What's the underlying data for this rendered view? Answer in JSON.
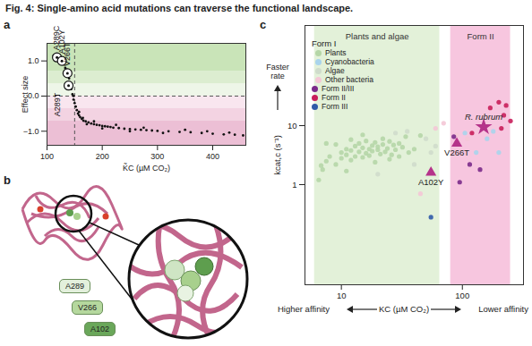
{
  "title": "Fig. 4: Single-amino acid mutations can traverse the functional landscape.",
  "chart_data": [
    {
      "panel": "a",
      "type": "scatter",
      "xlabel": "K̃C (µM CO₂)",
      "ylabel": "Effect size",
      "xlim": [
        100,
        460
      ],
      "xticks": [
        100,
        200,
        300,
        400
      ],
      "ylim": [
        -1.4,
        1.5
      ],
      "yticks": [
        -1,
        0,
        1
      ],
      "color": "#111111",
      "x": [
        112,
        118,
        122,
        125,
        130,
        133,
        136,
        138,
        140,
        142,
        144,
        146,
        148,
        150,
        152,
        154,
        156,
        158,
        160,
        163,
        166,
        170,
        175,
        180,
        185,
        190,
        195,
        200,
        205,
        210,
        215,
        220,
        230,
        240,
        250,
        260,
        270,
        280,
        290,
        300,
        320,
        340,
        360,
        380,
        400,
        420,
        440,
        455,
        165,
        172,
        185,
        200,
        225,
        250,
        275,
        310,
        350,
        390,
        430,
        158,
        148,
        135
      ],
      "values": [
        1.15,
        1.2,
        1.05,
        0.95,
        0.9,
        0.8,
        0.7,
        0.6,
        0.5,
        0.35,
        0.2,
        0.05,
        -0.1,
        -0.2,
        -0.3,
        -0.4,
        -0.5,
        -0.55,
        -0.6,
        -0.65,
        -0.7,
        -0.72,
        -0.75,
        -0.78,
        -0.8,
        -0.82,
        -0.83,
        -0.85,
        -0.86,
        -0.87,
        -0.88,
        -0.9,
        -0.91,
        -0.93,
        -0.94,
        -0.95,
        -0.96,
        -0.97,
        -0.98,
        -0.99,
        -1.0,
        -1.02,
        -1.03,
        -1.05,
        -1.07,
        -1.09,
        -1.1,
        -1.12,
        -0.62,
        -0.8,
        -0.72,
        -0.92,
        -0.82,
        -1.0,
        -0.9,
        -1.05,
        -0.96,
        -1.0,
        -1.04,
        -0.45,
        0.0,
        0.75
      ],
      "annotations": [
        {
          "label": "A289C",
          "x": 118,
          "y": 1.1
        },
        {
          "label": "A102Y",
          "x": 127,
          "y": 1.0
        },
        {
          "label": "V266T",
          "x": 137,
          "y": 0.65
        },
        {
          "label": "A289T",
          "x": 139,
          "y": 0.3
        }
      ],
      "bands": [
        {
          "y1": 0,
          "y2": 0.35,
          "color": "#eef6e8"
        },
        {
          "y1": 0.35,
          "y2": 0.7,
          "color": "#dcedd0"
        },
        {
          "y1": 0.7,
          "y2": 1.5,
          "color": "#c9e4b8"
        },
        {
          "y1": -0.35,
          "y2": 0,
          "color": "#f9e6ef"
        },
        {
          "y1": -0.7,
          "y2": -0.35,
          "color": "#f3d3e2"
        },
        {
          "y1": -1.4,
          "y2": -0.7,
          "color": "#ecbfd5"
        }
      ],
      "reference_lines": {
        "x": 150,
        "y": 0
      }
    },
    {
      "panel": "c",
      "type": "scatter",
      "log": true,
      "xlabel": "KC (µM CO₂)",
      "ylabel": "kcat,c (s⁻¹)",
      "xlim": [
        5,
        320
      ],
      "xticks": [
        10,
        100
      ],
      "ylim": [
        0.02,
        500
      ],
      "yticks": [
        1,
        10
      ],
      "y_note": "Faster rate",
      "x_notes": [
        "Higher affinity",
        "Lower affinity"
      ],
      "regions": [
        {
          "label": "Plants and algae",
          "x1": 6,
          "x2": 65,
          "color": "#e3f1d9"
        },
        {
          "label": "Form II",
          "x1": 80,
          "x2": 250,
          "color": "#f7c6df"
        }
      ],
      "series": [
        {
          "name": "Plants",
          "group": "Form I",
          "color": "#b5d6a7",
          "marker": "circle",
          "x": [
            6.5,
            7,
            7.5,
            8,
            9,
            10,
            10,
            11,
            11,
            12,
            12,
            13,
            13,
            14,
            14,
            15,
            15,
            16,
            16,
            17,
            17,
            18,
            18,
            19,
            20,
            20,
            21,
            22,
            22,
            23,
            24,
            25,
            26,
            27,
            28,
            30,
            32,
            34,
            36,
            9,
            12,
            15,
            19,
            25,
            30,
            40,
            7.5,
            45,
            11,
            6.8
          ],
          "values": [
            1.2,
            1.8,
            2.5,
            3,
            2.2,
            3.5,
            2.8,
            4,
            3.2,
            3.8,
            2.6,
            4.5,
            3,
            3.6,
            5,
            4.2,
            2.9,
            3.4,
            5.5,
            4,
            3.1,
            4.6,
            3.7,
            5.2,
            3.9,
            4.4,
            3.3,
            4.8,
            6,
            3.6,
            4.1,
            5.4,
            3.2,
            4.7,
            3.9,
            5,
            4.3,
            6.5,
            3.5,
            4.8,
            5.8,
            7,
            2.4,
            2.7,
            3,
            4,
            5,
            6.8,
            1.7,
            2.1
          ]
        },
        {
          "name": "Cyanobacteria",
          "group": "Form I",
          "color": "#a9d4ec",
          "marker": "circle",
          "x": [
            130,
            160,
            180,
            105,
            200
          ],
          "values": [
            3.5,
            6,
            8,
            7.5,
            3.5
          ]
        },
        {
          "name": "Algae",
          "group": "Form I",
          "color": "#cfdccb",
          "marker": "circle",
          "x": [
            28,
            35,
            50,
            40,
            55,
            20,
            60
          ],
          "values": [
            7.5,
            8,
            6,
            2.2,
            3.5,
            1.5,
            4.5
          ]
        },
        {
          "name": "Other bacteria",
          "group": "Form I",
          "color": "#f4c7d6",
          "marker": "circle",
          "x": [
            60,
            70,
            45,
            90,
            110
          ],
          "values": [
            9,
            11,
            0.7,
            7,
            6
          ]
        },
        {
          "name": "Form II/III",
          "color": "#7a2a8a",
          "marker": "circle",
          "x": [
            85,
            115,
            140,
            95
          ],
          "values": [
            6.5,
            2.2,
            1.8,
            1.1
          ]
        },
        {
          "name": "Form II",
          "color": "#c81e5a",
          "marker": "circle",
          "x": [
            200,
            230,
            170,
            220,
            250,
            210,
            120
          ],
          "values": [
            25,
            22,
            20,
            15,
            12,
            9,
            7.5
          ]
        },
        {
          "name": "Form III",
          "color": "#2f5aa8",
          "marker": "circle",
          "x": [
            55
          ],
          "values": [
            0.28
          ]
        }
      ],
      "highlights": [
        {
          "label": "R. rubrum",
          "x": 150,
          "y": 9.5,
          "color": "#b5338a",
          "marker": "star"
        },
        {
          "label": "V266T",
          "x": 90,
          "y": 5,
          "color": "#b5338a",
          "marker": "triangle"
        },
        {
          "label": "A102Y",
          "x": 55,
          "y": 1.6,
          "color": "#b5338a",
          "marker": "triangle"
        }
      ]
    }
  ],
  "diagram": {
    "panel": "b",
    "labels": [
      "A289",
      "V266",
      "A102"
    ]
  }
}
